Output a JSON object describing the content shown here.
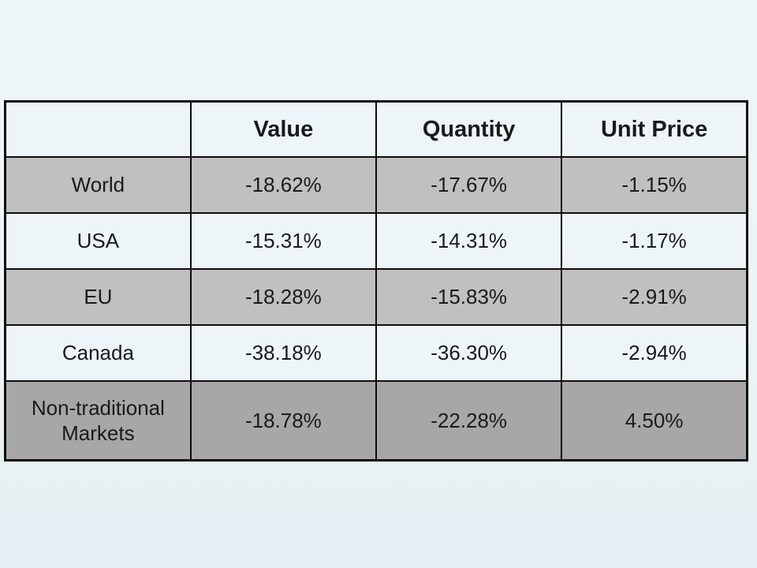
{
  "chart_data": {
    "type": "table",
    "title": "",
    "columns": [
      "",
      "Value",
      "Quantity",
      "Unit Price"
    ],
    "rows": [
      [
        "World",
        "-18.62%",
        "-17.67%",
        "-1.15%"
      ],
      [
        "USA",
        "-15.31%",
        "-14.31%",
        "-1.17%"
      ],
      [
        "EU",
        "-18.28%",
        "-15.83%",
        "-2.91%"
      ],
      [
        "Canada",
        "-38.18%",
        "-36.30%",
        "-2.94%"
      ],
      [
        "Non-traditional Markets",
        "-18.78%",
        "-22.28%",
        "4.50%"
      ]
    ],
    "layout_hints": {
      "header_bold": true,
      "row_shading_order": [
        "gray",
        "light",
        "gray",
        "light",
        "dark"
      ],
      "grid": true
    }
  },
  "colors": {
    "slide_background": "#ecf4f7",
    "row_light": "#edf5f8",
    "row_gray": "#c1c0c0",
    "row_dark": "#a8a7a7",
    "border": "#0d0d0d",
    "text": "#1a1a1a"
  }
}
